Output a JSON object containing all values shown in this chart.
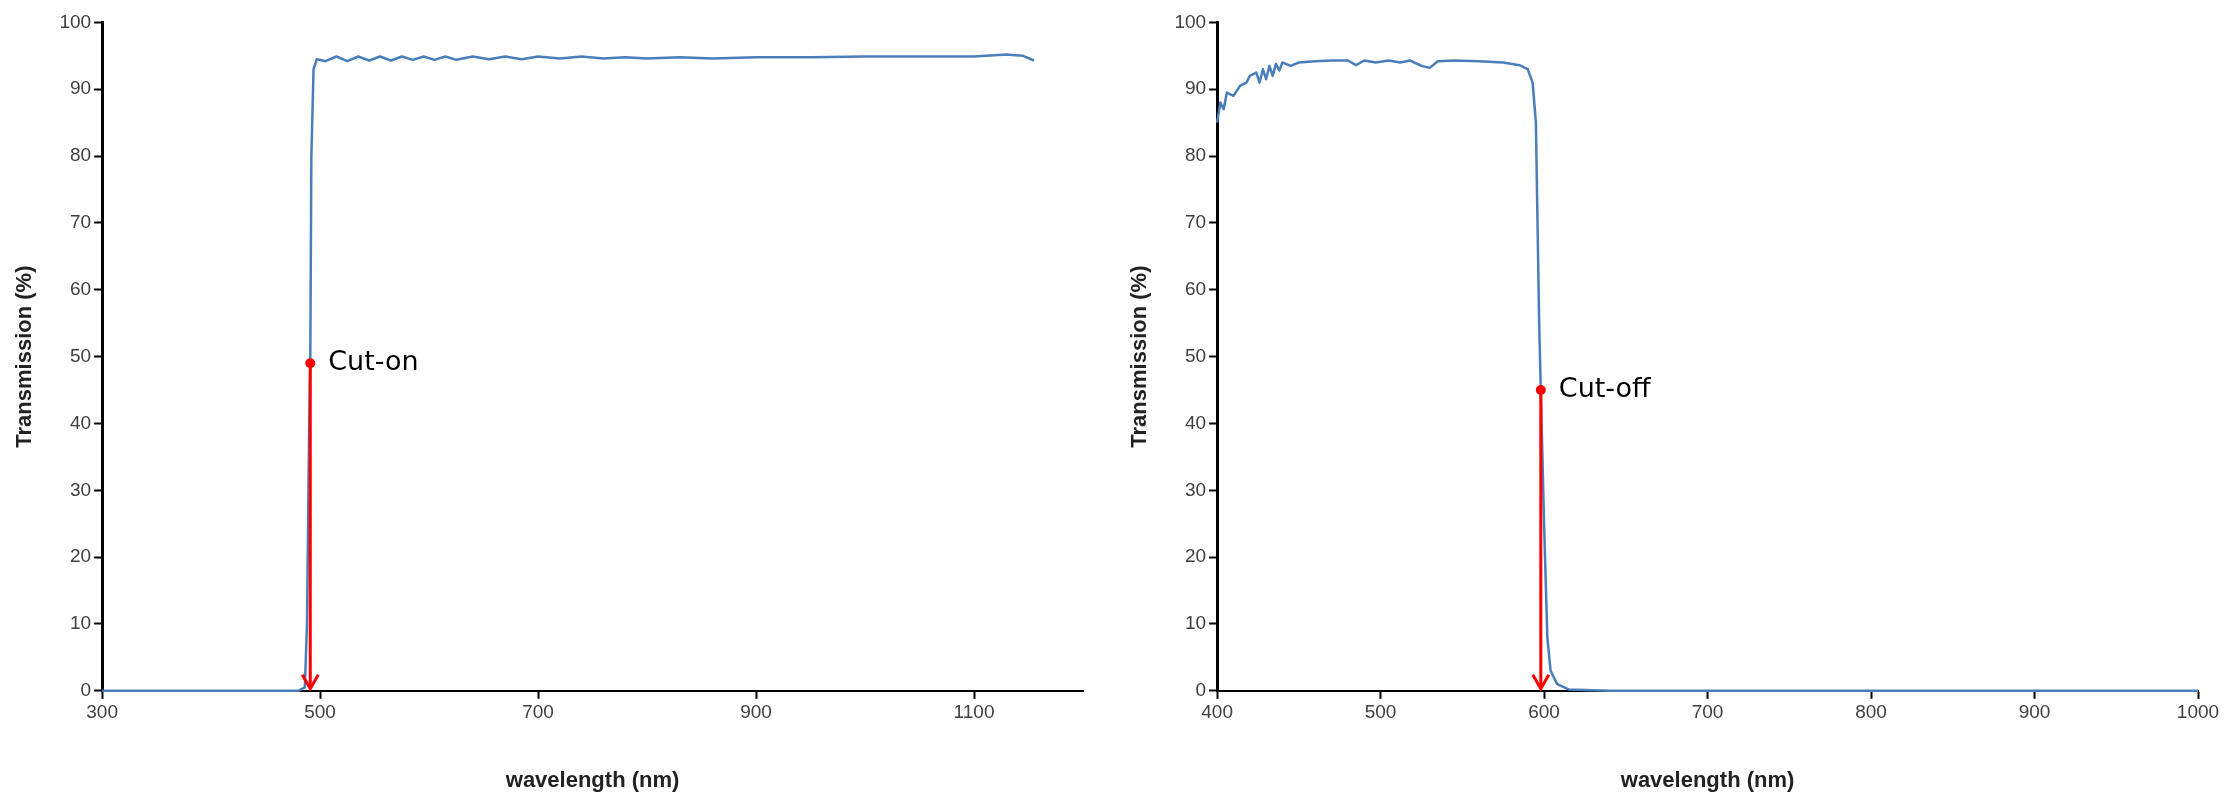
{
  "chart_data": [
    {
      "type": "line",
      "xlabel": "wavelength (nm)",
      "ylabel": "Transmission (%)",
      "xlim": [
        300,
        1200
      ],
      "xticks": [
        300,
        500,
        700,
        900,
        1100
      ],
      "ylim": [
        0,
        100
      ],
      "yticks": [
        0,
        10,
        20,
        30,
        40,
        50,
        60,
        70,
        80,
        90,
        100
      ],
      "grid": false,
      "legend": false,
      "marker": "none",
      "line_style": "solid",
      "annotations": [
        {
          "text": "Cut-on",
          "x": 491,
          "y": 49
        }
      ],
      "series": [
        {
          "color": "#4a7ebb",
          "x": [
            300,
            480,
            486,
            488,
            489,
            490,
            491,
            492,
            494,
            497,
            505,
            515,
            525,
            535,
            545,
            555,
            565,
            575,
            585,
            595,
            605,
            615,
            625,
            640,
            655,
            670,
            685,
            700,
            720,
            740,
            760,
            780,
            800,
            830,
            860,
            900,
            950,
            1000,
            1050,
            1100,
            1130,
            1145,
            1155
          ],
          "values": [
            0,
            0,
            0.5,
            10,
            25,
            40,
            49,
            80,
            93,
            94.5,
            94.2,
            94.9,
            94.2,
            94.9,
            94.3,
            94.9,
            94.3,
            94.9,
            94.4,
            94.9,
            94.4,
            94.9,
            94.4,
            94.9,
            94.5,
            94.9,
            94.5,
            94.9,
            94.6,
            94.9,
            94.6,
            94.8,
            94.6,
            94.8,
            94.6,
            94.8,
            94.8,
            94.9,
            94.9,
            94.9,
            95.2,
            95,
            94.3
          ]
        }
      ]
    },
    {
      "type": "line",
      "xlabel": "wavelength (nm)",
      "ylabel": "Transmission (%)",
      "xlim": [
        400,
        1000
      ],
      "xticks": [
        400,
        500,
        600,
        700,
        800,
        900,
        1000
      ],
      "ylim": [
        0,
        100
      ],
      "yticks": [
        0,
        10,
        20,
        30,
        40,
        50,
        60,
        70,
        80,
        90,
        100
      ],
      "grid": false,
      "legend": false,
      "marker": "none",
      "line_style": "solid",
      "annotations": [
        {
          "text": "Cut-off",
          "x": 598,
          "y": 45
        }
      ],
      "series": [
        {
          "color": "#4a7ebb",
          "x": [
            400,
            402,
            404,
            406,
            410,
            414,
            418,
            420,
            424,
            426,
            428,
            430,
            432,
            434,
            436,
            438,
            440,
            445,
            450,
            460,
            470,
            480,
            485,
            490,
            497,
            505,
            512,
            518,
            525,
            530,
            535,
            545,
            560,
            575,
            585,
            590,
            593,
            595,
            596,
            597,
            598,
            600,
            602,
            604,
            608,
            615,
            640,
            1000
          ],
          "values": [
            85,
            88,
            87,
            89.5,
            89,
            90.5,
            91,
            92,
            92.5,
            91,
            93,
            91.5,
            93.5,
            92,
            93.8,
            92.8,
            94,
            93.5,
            94,
            94.2,
            94.3,
            94.3,
            93.6,
            94.3,
            94,
            94.3,
            94,
            94.3,
            93.5,
            93.2,
            94.2,
            94.3,
            94.2,
            94,
            93.6,
            93,
            91,
            85,
            70,
            55,
            45,
            25,
            8,
            3,
            1,
            0.2,
            0,
            0
          ]
        }
      ]
    }
  ]
}
